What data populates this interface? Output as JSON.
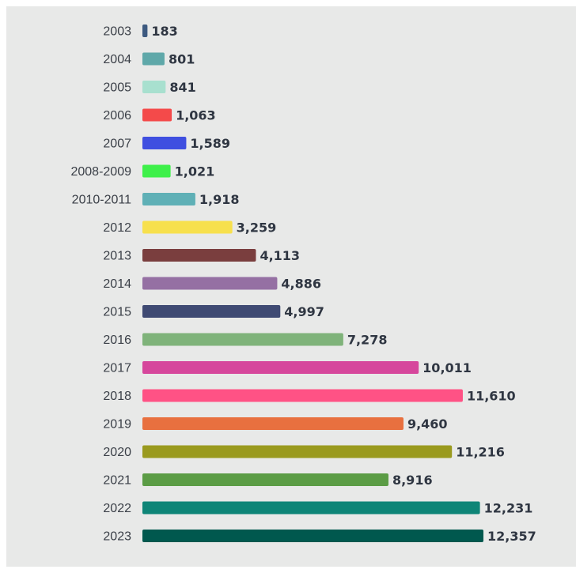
{
  "chart_data": {
    "type": "bar",
    "orientation": "horizontal",
    "title": "",
    "xlabel": "",
    "ylabel": "",
    "grid": false,
    "legend": "none",
    "xlim": [
      0,
      12357
    ],
    "categories": [
      "2003",
      "2004",
      "2005",
      "2006",
      "2007",
      "2008-2009",
      "2010-2011",
      "2012",
      "2013",
      "2014",
      "2015",
      "2016",
      "2017",
      "2018",
      "2019",
      "2020",
      "2021",
      "2022",
      "2023"
    ],
    "values": [
      183,
      801,
      841,
      1063,
      1589,
      1021,
      1918,
      3259,
      4113,
      4886,
      4997,
      7278,
      10011,
      11610,
      9460,
      11216,
      8916,
      12231,
      12357
    ],
    "value_labels": [
      "183",
      "801",
      "841",
      "1,063",
      "1,589",
      "1,021",
      "1,918",
      "3,259",
      "4,113",
      "4,886",
      "4,997",
      "7,278",
      "10,011",
      "11,610",
      "9,460",
      "11,216",
      "8,916",
      "12,231",
      "12,357"
    ],
    "colors": [
      "#3d5a80",
      "#5fa8a9",
      "#a8e0cf",
      "#f44a4a",
      "#3f4fe0",
      "#3ef04a",
      "#5fb0b6",
      "#f7e04d",
      "#7a3e3e",
      "#9570a3",
      "#3f4a73",
      "#7fb37a",
      "#d6479c",
      "#ff5285",
      "#e8703f",
      "#9a9a1e",
      "#5b9c45",
      "#0e8577",
      "#00584e"
    ]
  }
}
